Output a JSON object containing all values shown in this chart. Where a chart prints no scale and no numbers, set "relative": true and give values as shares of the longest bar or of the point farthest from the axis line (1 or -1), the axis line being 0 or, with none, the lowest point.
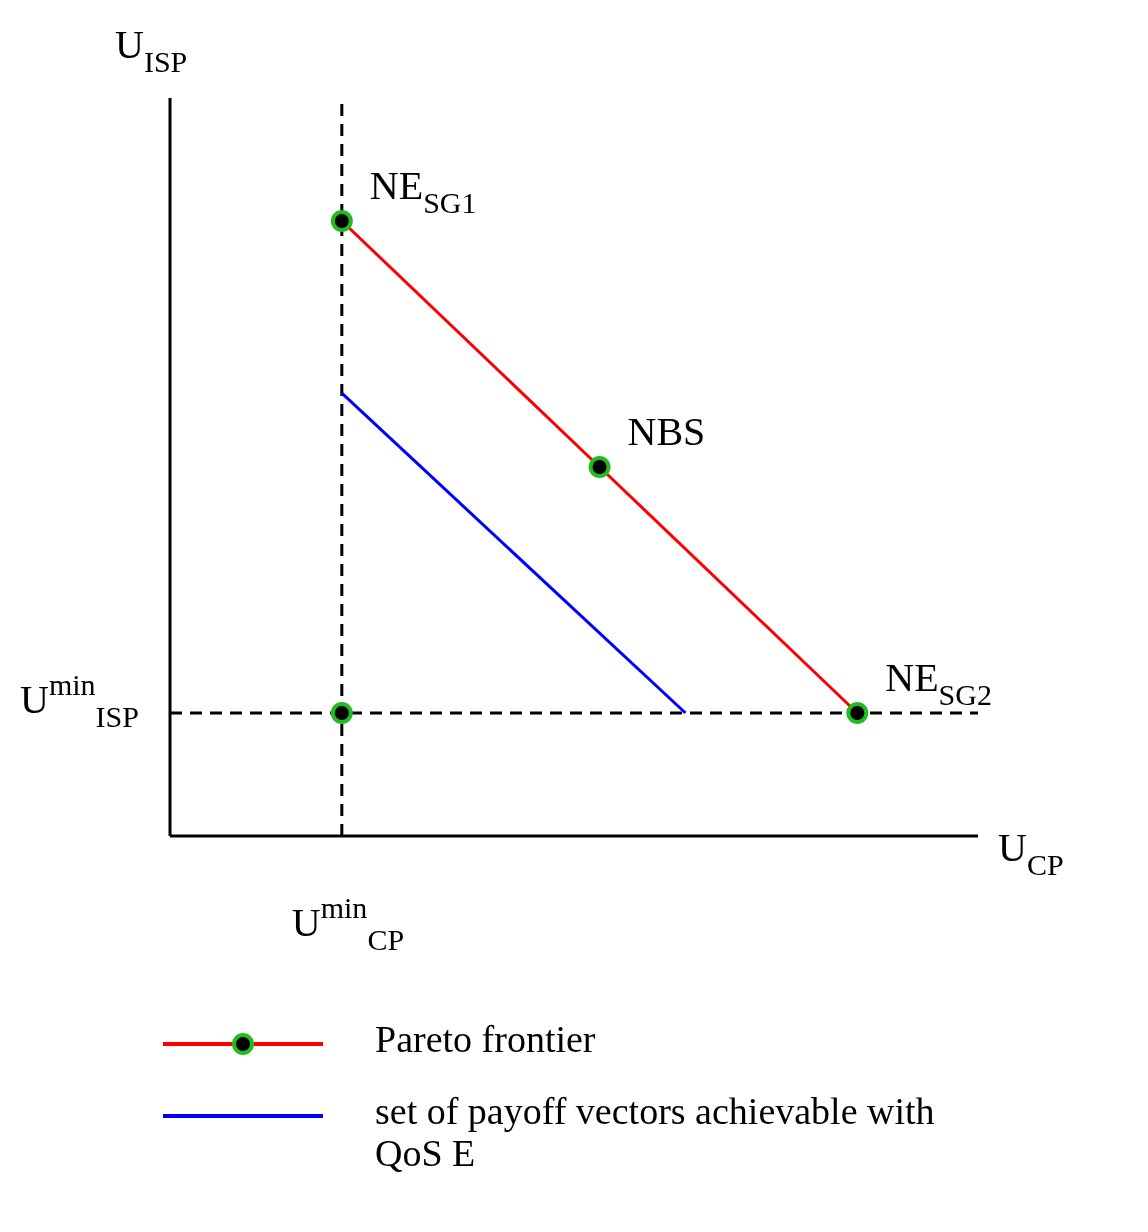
{
  "chart_data": {
    "type": "line",
    "relative": true,
    "xlabel": "U$_{CP}$",
    "ylabel": "U$_{ISP}$",
    "legend": "bottom",
    "categories": [
      null,
      null,
      null,
      null,
      null,
      null,
      null,
      null,
      null,
      null,
      null,
      null,
      null,
      null,
      null,
      null,
      null,
      null,
      null
    ],
    "series": [
      {
        "name": "Pareto frontier",
        "color": "#ff0000",
        "marker": "circle",
        "values": [
          null,
          null,
          null,
          null,
          1,
          null,
          null,
          null,
          null,
          null,
          0.6,
          null,
          null,
          null,
          null,
          null,
          0.2,
          null,
          null
        ]
      },
      {
        "name": "set of payoff vectors achievable with QoS E",
        "color": "#0000ff",
        "values": [
          null,
          null,
          null,
          null,
          0.72,
          null,
          null,
          null,
          null,
          null,
          null,
          null,
          0.2,
          null,
          null,
          null,
          null,
          null,
          null
        ]
      },
      {
        "color": "#000000",
        "marker": "circle",
        "values": [
          null,
          null,
          null,
          null,
          0.2,
          null,
          null,
          null,
          null,
          null,
          null,
          null,
          null,
          null,
          null,
          null,
          null,
          null,
          null
        ]
      }
    ],
    "ref_lines": [
      {
        "axis": "y",
        "value": 0.2,
        "label": "U$^{min}$$_{ISP}$",
        "line_style": "dashed",
        "color": "#000000"
      }
    ],
    "annotations": [
      "NE$_{SG1}$",
      "NBS",
      "NE$_{SG2}$",
      "U$^{min}$$_{CP}$"
    ]
  }
}
